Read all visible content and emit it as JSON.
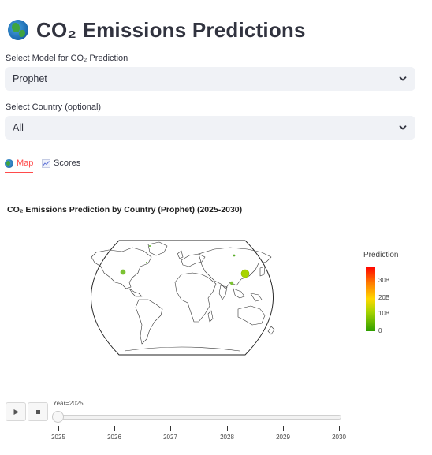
{
  "header": {
    "title": "CO₂ Emissions Predictions",
    "icon": "globe-icon"
  },
  "model_select": {
    "label": "Select Model for CO₂ Prediction",
    "value": "Prophet"
  },
  "country_select": {
    "label": "Select Country (optional)",
    "value": "All"
  },
  "tabs": [
    {
      "label": "Map",
      "icon": "globe-icon",
      "active": true
    },
    {
      "label": "Scores",
      "icon": "chart-icon",
      "active": false
    }
  ],
  "chart": {
    "title": "CO₂ Emissions Prediction by Country (Prophet) (2025-2030)",
    "legend_title": "Prediction",
    "colorbar_ticks": [
      "30B",
      "20B",
      "10B",
      "0"
    ],
    "colorscale": [
      "#2f9e00",
      "#a8d400",
      "#ffd800",
      "#ff7a00",
      "#ff0000"
    ]
  },
  "animation": {
    "slider_label": "Year=2025",
    "play_icon": "play-icon",
    "stop_icon": "stop-icon",
    "years": [
      "2025",
      "2026",
      "2027",
      "2028",
      "2029",
      "2030"
    ],
    "selected_year": "2025"
  }
}
